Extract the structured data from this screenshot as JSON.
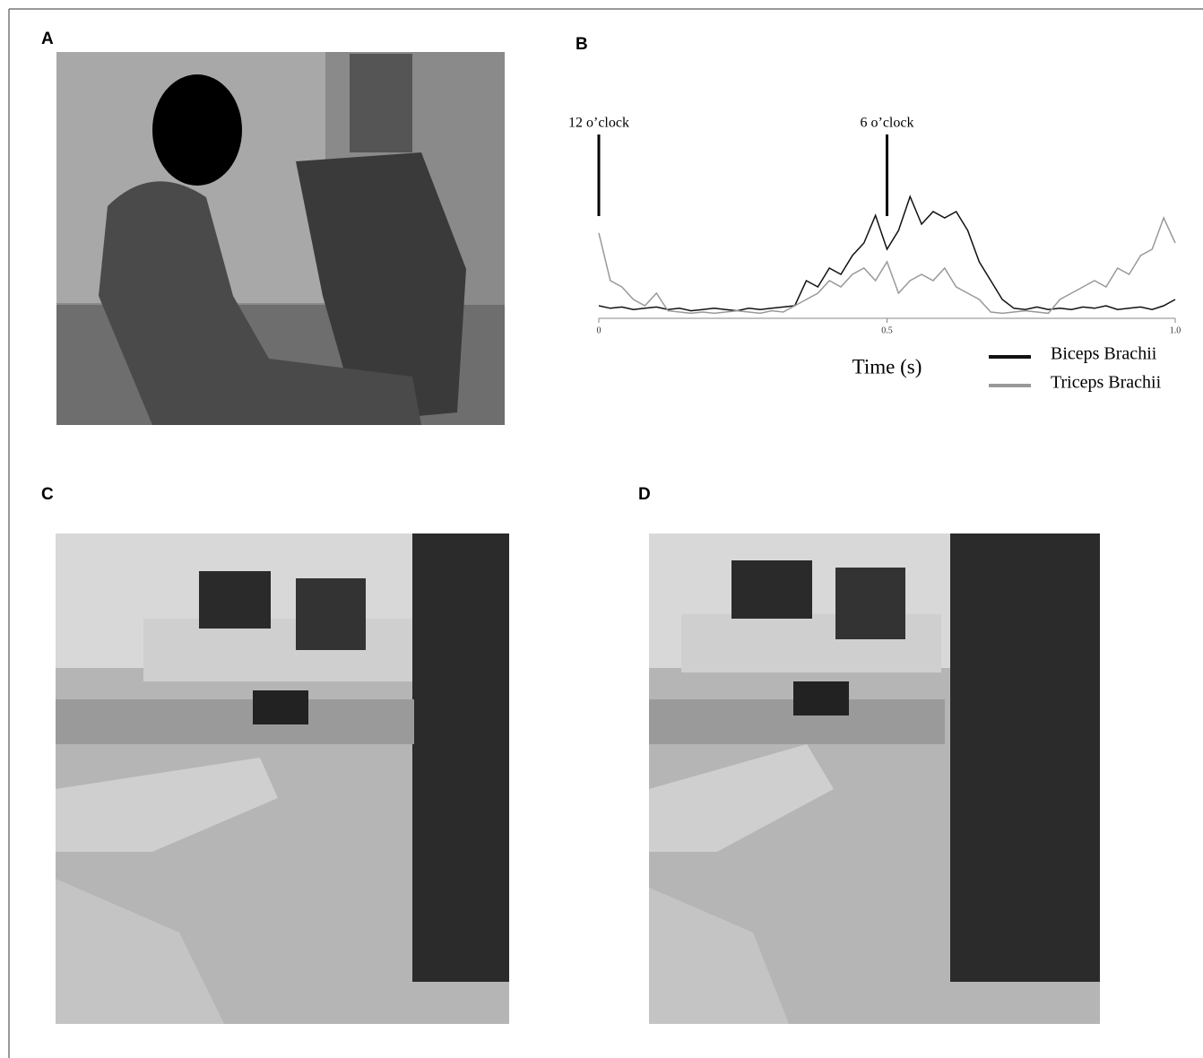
{
  "figure": {
    "labels": [
      "A",
      "B",
      "C",
      "D"
    ]
  },
  "chart_data": {
    "type": "line",
    "x": [
      0,
      0.02,
      0.04,
      0.06,
      0.08,
      0.1,
      0.12,
      0.14,
      0.16,
      0.18,
      0.2,
      0.22,
      0.24,
      0.26,
      0.28,
      0.3,
      0.32,
      0.34,
      0.36,
      0.38,
      0.4,
      0.42,
      0.44,
      0.46,
      0.48,
      0.5,
      0.52,
      0.54,
      0.56,
      0.58,
      0.6,
      0.62,
      0.64,
      0.66,
      0.68,
      0.7,
      0.72,
      0.74,
      0.76,
      0.78,
      0.8,
      0.82,
      0.84,
      0.86,
      0.88,
      0.9,
      0.92,
      0.94,
      0.96,
      0.98,
      1.0
    ],
    "series": [
      {
        "name": "Biceps Brachii",
        "color": "#111111",
        "values": [
          0.1,
          0.08,
          0.09,
          0.07,
          0.08,
          0.09,
          0.07,
          0.08,
          0.06,
          0.07,
          0.08,
          0.07,
          0.06,
          0.08,
          0.07,
          0.08,
          0.09,
          0.1,
          0.3,
          0.25,
          0.4,
          0.35,
          0.5,
          0.6,
          0.82,
          0.55,
          0.7,
          0.97,
          0.75,
          0.85,
          0.8,
          0.85,
          0.7,
          0.45,
          0.3,
          0.15,
          0.08,
          0.07,
          0.09,
          0.07,
          0.08,
          0.07,
          0.09,
          0.08,
          0.1,
          0.07,
          0.08,
          0.09,
          0.07,
          0.1,
          0.15
        ]
      },
      {
        "name": "Triceps Brachii",
        "color": "#999999",
        "values": [
          0.68,
          0.3,
          0.25,
          0.15,
          0.1,
          0.2,
          0.06,
          0.05,
          0.04,
          0.05,
          0.04,
          0.05,
          0.06,
          0.05,
          0.04,
          0.06,
          0.05,
          0.1,
          0.15,
          0.2,
          0.3,
          0.25,
          0.35,
          0.4,
          0.3,
          0.45,
          0.2,
          0.3,
          0.35,
          0.3,
          0.4,
          0.25,
          0.2,
          0.15,
          0.05,
          0.04,
          0.05,
          0.06,
          0.05,
          0.04,
          0.15,
          0.2,
          0.25,
          0.3,
          0.25,
          0.4,
          0.35,
          0.5,
          0.55,
          0.8,
          0.6
        ]
      }
    ],
    "xlim": [
      0,
      1
    ],
    "xticks": [
      0,
      0.5,
      {
        "value": 1,
        "label": "1.0"
      }
    ],
    "ylim": [
      0,
      1
    ],
    "xlabel": "Time (s)",
    "annotations": [
      {
        "text": "12 o’clock",
        "x": 0
      },
      {
        "text": "6 o’clock",
        "x": 0.5
      }
    ],
    "legend": "bottom-right"
  }
}
